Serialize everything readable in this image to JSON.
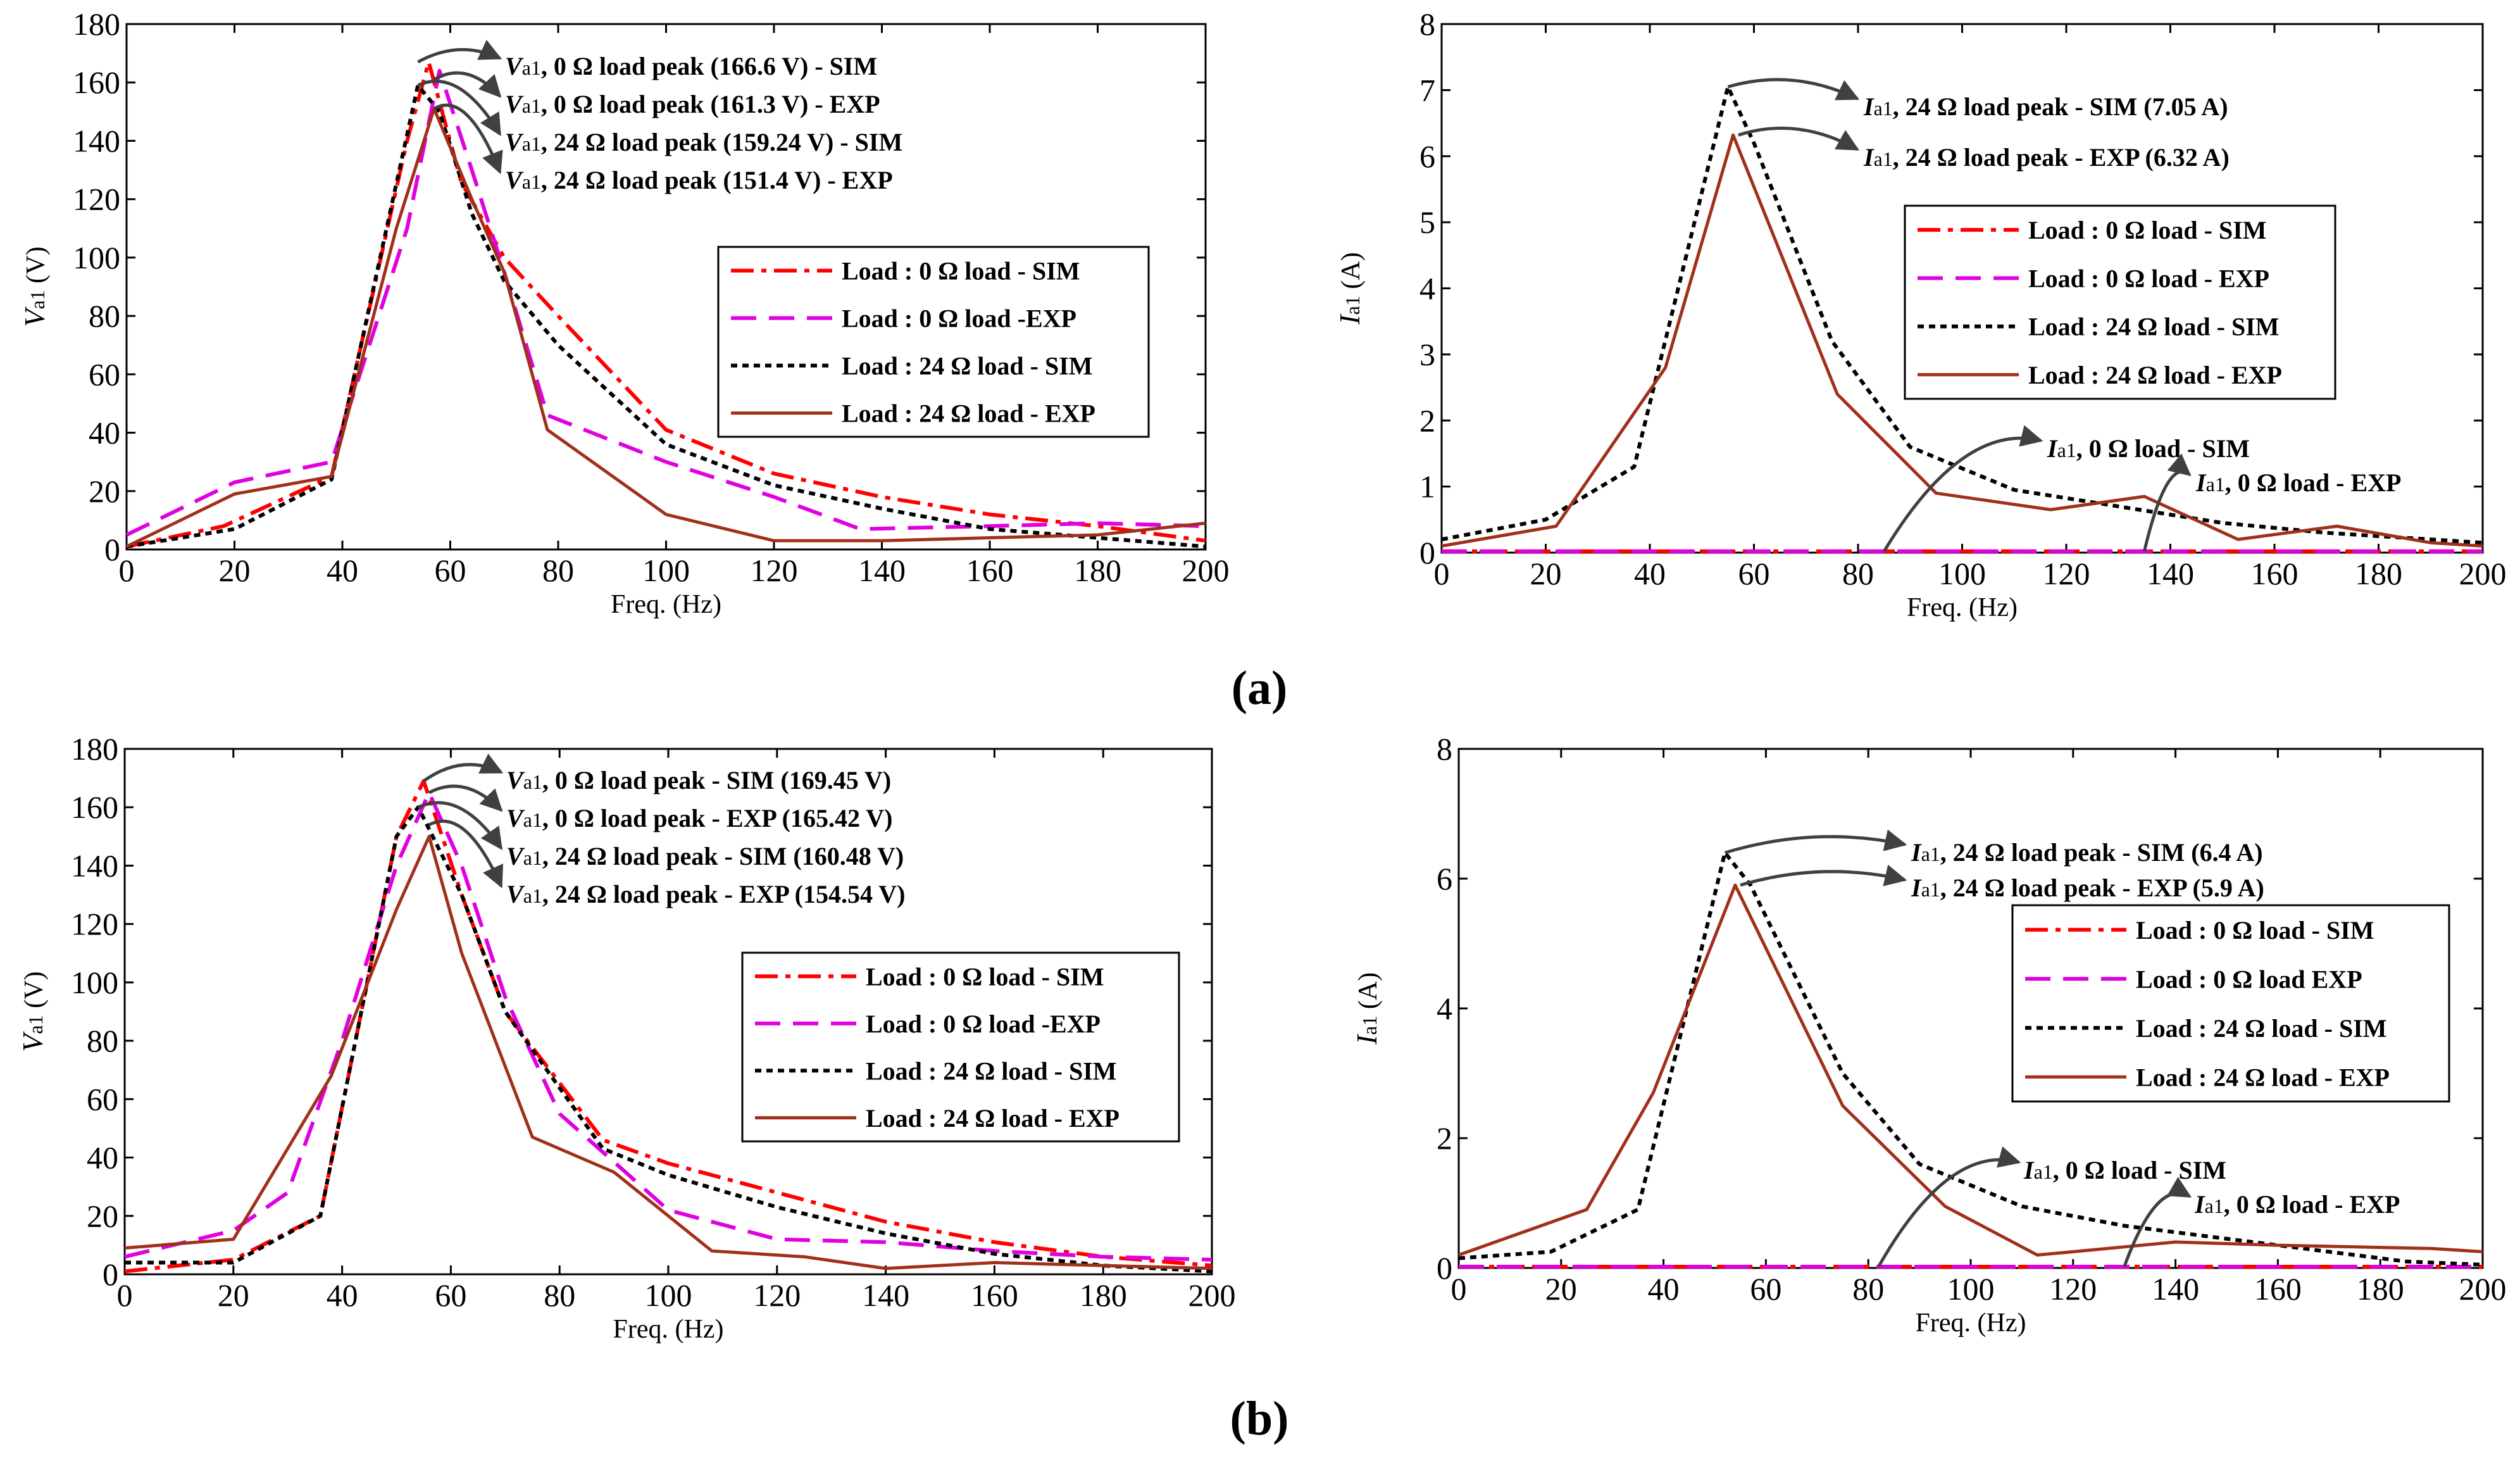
{
  "panel_labels": [
    "(a)",
    "(b)"
  ],
  "colors": {
    "sim0": "#ff0000",
    "exp0": "#e000e0",
    "exp0_dash": "#c020c0",
    "sim24": "#000000",
    "exp24": "#a0301a",
    "arrow": "#404040"
  },
  "chart_data": [
    {
      "id": "a-voltage",
      "type": "line",
      "xlabel": "Freq. (Hz)",
      "ylabel_main": "V",
      "ylabel_sub": "a1",
      "ylabel_unit": " (V)",
      "xlim": [
        0,
        200
      ],
      "ylim": [
        0,
        180
      ],
      "xticks": [
        "0",
        "20",
        "40",
        "60",
        "80",
        "100",
        "120",
        "140",
        "160",
        "180",
        "200"
      ],
      "yticks": [
        "0",
        "20",
        "40",
        "60",
        "80",
        "100",
        "120",
        "140",
        "160",
        "180"
      ],
      "series": [
        {
          "name": "Load : 0 Ω load - SIM",
          "style": "sim0",
          "x": [
            0,
            18,
            38,
            52,
            56,
            62,
            70,
            80,
            100,
            120,
            140,
            160,
            180,
            200
          ],
          "y": [
            1,
            8,
            25,
            140,
            167,
            126,
            100,
            80,
            41,
            26,
            18,
            12,
            8,
            3
          ]
        },
        {
          "name": "Load : 0 Ω load -EXP",
          "style": "exp0",
          "x": [
            0,
            20,
            38,
            52,
            58,
            64,
            70,
            78,
            100,
            120,
            136,
            160,
            180,
            200
          ],
          "y": [
            5,
            23,
            30,
            110,
            164,
            130,
            95,
            46,
            30,
            18,
            7,
            8,
            9,
            8
          ]
        },
        {
          "name": "Load : 24 Ω load - SIM",
          "style": "sim24",
          "x": [
            0,
            20,
            38,
            54,
            58,
            64,
            70,
            80,
            100,
            120,
            140,
            160,
            180,
            200
          ],
          "y": [
            1,
            7,
            24,
            159,
            150,
            115,
            92,
            70,
            36,
            22,
            14,
            7,
            4,
            1
          ]
        },
        {
          "name": "Load : 24 Ω load - EXP",
          "style": "exp24",
          "x": [
            0,
            20,
            38,
            50,
            57,
            64,
            70,
            78,
            100,
            120,
            140,
            160,
            180,
            200
          ],
          "y": [
            1,
            19,
            25,
            110,
            151,
            120,
            95,
            41,
            12,
            3,
            3,
            4,
            5,
            9
          ]
        }
      ],
      "legend": [
        "Load : 0 Ω load - SIM",
        "Load : 0 Ω load -EXP",
        "Load : 24 Ω load - SIM",
        "Load : 24 Ω load - EXP"
      ],
      "annotations": [
        {
          "main": "V",
          "sub": "a1",
          "rest": ", 0 Ω load peak (166.6 V) - SIM"
        },
        {
          "main": "V",
          "sub": "a1",
          "rest": ", 0 Ω load peak (161.3 V) - EXP"
        },
        {
          "main": "V",
          "sub": "a1",
          "rest": ", 24 Ω load peak (159.24 V) - SIM"
        },
        {
          "main": "V",
          "sub": "a1",
          "rest": ", 24 Ω load peak (151.4 V) - EXP"
        }
      ]
    },
    {
      "id": "a-current",
      "type": "line",
      "xlabel": "Freq. (Hz)",
      "ylabel_main": "I",
      "ylabel_sub": "a1",
      "ylabel_unit": " (A)",
      "xlim": [
        0,
        200
      ],
      "ylim": [
        0,
        8
      ],
      "xticks": [
        "0",
        "20",
        "40",
        "60",
        "80",
        "100",
        "120",
        "140",
        "160",
        "180",
        "200"
      ],
      "yticks": [
        "0",
        "1",
        "2",
        "3",
        "4",
        "5",
        "6",
        "7",
        "8"
      ],
      "series": [
        {
          "name": "Load : 0 Ω load   - SIM",
          "style": "sim0",
          "x": [
            0,
            200
          ],
          "y": [
            0.02,
            0.02
          ]
        },
        {
          "name": "Load : 0 Ω load   - EXP",
          "style": "exp0",
          "x": [
            0,
            200
          ],
          "y": [
            0.02,
            0.02
          ]
        },
        {
          "name": "Load : 24 Ω load  - SIM",
          "style": "sim24",
          "x": [
            0,
            20,
            37,
            55,
            60,
            75,
            90,
            110,
            130,
            150,
            170,
            200
          ],
          "y": [
            0.2,
            0.5,
            1.3,
            7.05,
            6.2,
            3.2,
            1.6,
            0.95,
            0.7,
            0.45,
            0.3,
            0.15
          ]
        },
        {
          "name": "Load : 24 Ω load - EXP",
          "style": "exp24",
          "x": [
            0,
            22,
            43,
            56,
            76,
            95,
            117,
            135,
            153,
            172,
            190,
            200
          ],
          "y": [
            0.1,
            0.4,
            2.8,
            6.32,
            2.4,
            0.9,
            0.65,
            0.85,
            0.2,
            0.4,
            0.15,
            0.1
          ]
        }
      ],
      "legend": [
        "Load : 0 Ω load   - SIM",
        "Load : 0 Ω load   - EXP",
        "Load : 24 Ω load  - SIM",
        "Load : 24 Ω load - EXP"
      ],
      "annotations": [
        {
          "main": "I",
          "sub": "a1",
          "rest": ", 24 Ω load peak  -  SIM  (7.05 A)"
        },
        {
          "main": "I",
          "sub": "a1",
          "rest": ", 24 Ω load peak  -  EXP  (6.32 A)"
        },
        {
          "main": "I",
          "sub": "a1",
          "rest": ", 0 Ω load - SIM"
        },
        {
          "main": "I",
          "sub": "a1",
          "rest": ", 0 Ω load - EXP"
        }
      ]
    },
    {
      "id": "b-voltage",
      "type": "line",
      "xlabel": "Freq. (Hz)",
      "ylabel_main": "V",
      "ylabel_sub": "a1",
      "ylabel_unit": " (V)",
      "xlim": [
        0,
        200
      ],
      "ylim": [
        0,
        180
      ],
      "xticks": [
        "0",
        "20",
        "40",
        "60",
        "80",
        "100",
        "120",
        "140",
        "160",
        "180",
        "200"
      ],
      "yticks": [
        "0",
        "20",
        "40",
        "60",
        "80",
        "100",
        "120",
        "140",
        "160",
        "180"
      ],
      "series": [
        {
          "name": "Load : 0 Ω load - SIM",
          "style": "sim0",
          "x": [
            0,
            20,
            36,
            50,
            55,
            62,
            70,
            88,
            100,
            120,
            140,
            160,
            180,
            200
          ],
          "y": [
            1,
            5,
            20,
            150,
            169,
            130,
            90,
            46,
            38,
            28,
            18,
            11,
            6,
            3
          ]
        },
        {
          "name": "Load : 0 Ω load -EXP",
          "style": "exp0",
          "x": [
            0,
            20,
            30,
            40,
            50,
            56,
            62,
            70,
            80,
            100,
            120,
            140,
            160,
            180,
            200
          ],
          "y": [
            6,
            15,
            28,
            80,
            140,
            165,
            140,
            95,
            55,
            22,
            12,
            11,
            8,
            6,
            5
          ]
        },
        {
          "name": "Load : 24 Ω load - SIM",
          "style": "sim24",
          "x": [
            0,
            20,
            36,
            50,
            54,
            62,
            70,
            88,
            100,
            120,
            140,
            160,
            180,
            200
          ],
          "y": [
            4,
            4,
            20,
            150,
            160,
            130,
            90,
            43,
            34,
            23,
            14,
            7,
            3,
            1
          ]
        },
        {
          "name": "Load : 24 Ω load - EXP",
          "style": "exp24",
          "x": [
            0,
            20,
            38,
            50,
            56,
            62,
            75,
            90,
            108,
            125,
            140,
            160,
            180,
            200
          ],
          "y": [
            9,
            12,
            68,
            125,
            150,
            110,
            47,
            35,
            8,
            6,
            2,
            4,
            3,
            2
          ]
        }
      ],
      "legend": [
        "Load : 0 Ω load - SIM",
        "Load : 0 Ω load -EXP",
        "Load : 24 Ω load - SIM",
        "Load : 24 Ω load - EXP"
      ],
      "annotations": [
        {
          "main": "V",
          "sub": "a1",
          "rest": ", 0 Ω load peak - SIM (169.45 V)"
        },
        {
          "main": "V",
          "sub": "a1",
          "rest": ", 0 Ω load peak - EXP (165.42 V)"
        },
        {
          "main": "V",
          "sub": "a1",
          "rest": ", 24 Ω load peak - SIM (160.48 V)"
        },
        {
          "main": "V",
          "sub": "a1",
          "rest": ", 24 Ω load peak - EXP (154.54 V)"
        }
      ]
    },
    {
      "id": "b-current",
      "type": "line",
      "xlabel": "Freq. (Hz)",
      "ylabel_main": "I",
      "ylabel_sub": "a1",
      "ylabel_unit": " (A)",
      "xlim": [
        0,
        200
      ],
      "ylim": [
        0,
        8
      ],
      "xticks": [
        "0",
        "20",
        "40",
        "60",
        "80",
        "100",
        "120",
        "140",
        "160",
        "180",
        "200"
      ],
      "yticks": [
        "0",
        "2",
        "4",
        "6",
        "8"
      ],
      "series": [
        {
          "name": "Load : 0 Ω load   - SIM",
          "style": "sim0",
          "x": [
            0,
            200
          ],
          "y": [
            0.02,
            0.02
          ]
        },
        {
          "name": "Load : 0 Ω load    EXP",
          "style": "exp0",
          "x": [
            0,
            200
          ],
          "y": [
            0.02,
            0.02
          ]
        },
        {
          "name": "Load : 24 Ω load   - SIM",
          "style": "sim24",
          "x": [
            0,
            18,
            35,
            52,
            57,
            75,
            90,
            110,
            130,
            150,
            170,
            185,
            200
          ],
          "y": [
            0.15,
            0.25,
            0.9,
            6.4,
            5.9,
            3.0,
            1.6,
            0.95,
            0.65,
            0.45,
            0.25,
            0.1,
            0.05
          ]
        },
        {
          "name": "Load : 24 Ω load - EXP",
          "style": "exp24",
          "x": [
            0,
            25,
            38,
            54,
            75,
            95,
            113,
            120,
            140,
            160,
            190,
            200
          ],
          "y": [
            0.2,
            0.9,
            2.7,
            5.9,
            2.5,
            0.95,
            0.2,
            0.25,
            0.4,
            0.35,
            0.3,
            0.25
          ]
        }
      ],
      "legend": [
        "Load : 0 Ω load   - SIM",
        "Load : 0 Ω load    EXP",
        "Load : 24 Ω load   - SIM",
        "Load : 24 Ω load - EXP"
      ],
      "annotations": [
        {
          "main": "I",
          "sub": "a1",
          "rest": ", 24 Ω load peak - SIM  (6.4 A)"
        },
        {
          "main": "I",
          "sub": "a1",
          "rest": ", 24 Ω load peak - EXP  (5.9 A)"
        },
        {
          "main": "I",
          "sub": "a1",
          "rest": ", 0 Ω load - SIM"
        },
        {
          "main": "I",
          "sub": "a1",
          "rest": ", 0 Ω load - EXP"
        }
      ]
    }
  ]
}
